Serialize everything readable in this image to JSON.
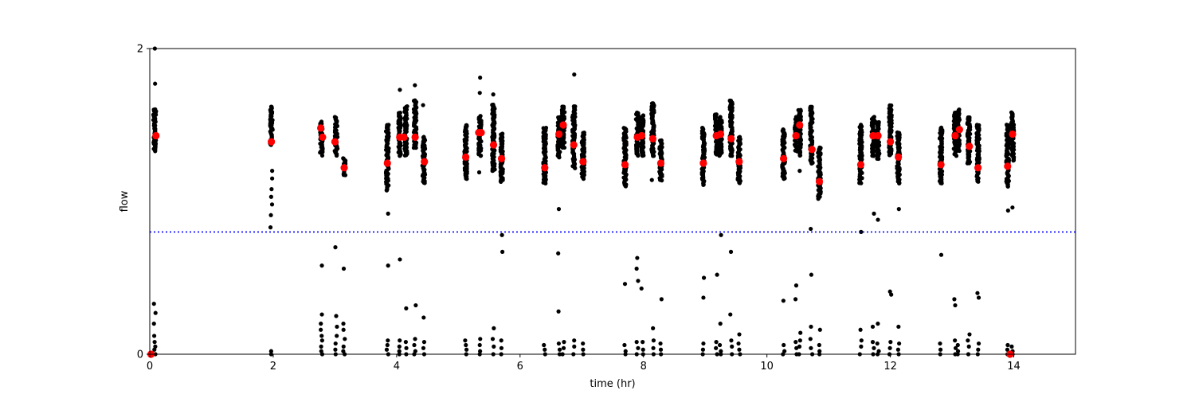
{
  "chart_data": {
    "type": "scatter",
    "title": "",
    "xlabel": "time (hr)",
    "ylabel": "flow",
    "xlim": [
      0,
      15
    ],
    "ylim": [
      0,
      2
    ],
    "x_ticks": [
      0,
      2,
      4,
      6,
      8,
      10,
      12,
      14
    ],
    "x_tick_labels": [
      "0",
      "2",
      "4",
      "6",
      "8",
      "10",
      "12",
      "14"
    ],
    "y_ticks": [
      0,
      2
    ],
    "y_tick_labels": [
      "0",
      "2"
    ],
    "grid": false,
    "legend": "none",
    "threshold_line": {
      "y": 0.8,
      "color": "#0000ff",
      "style": "dotted"
    },
    "colors": {
      "samples": "#000000",
      "means": "#ff0000",
      "threshold": "#0000ff",
      "axes": "#000000"
    },
    "series": [
      {
        "role": "samples",
        "clusters": [
          {
            "x": 0.08,
            "top": 1.6,
            "bottom": 1.33,
            "outliers": [
              2.0,
              1.77,
              0.33,
              0.27,
              0.2,
              0.12,
              0.08,
              0.05,
              0.03,
              0.0
            ]
          },
          {
            "x": 1.97,
            "top": 1.62,
            "bottom": 1.37,
            "outliers": [
              1.2,
              1.15,
              1.08,
              1.03,
              0.98,
              0.91,
              0.83,
              0.02,
              0.0
            ]
          },
          {
            "x": 2.78,
            "top": 1.52,
            "bottom": 1.32,
            "outliers": [
              1.3,
              0.58,
              0.26,
              0.2,
              0.16,
              0.12,
              0.09,
              0.05,
              0.02,
              0.0
            ]
          },
          {
            "x": 3.02,
            "top": 1.55,
            "bottom": 1.3,
            "outliers": [
              0.7,
              0.25,
              0.18,
              0.12,
              0.07,
              0.03,
              0.0
            ]
          },
          {
            "x": 3.15,
            "top": 1.28,
            "bottom": 1.17,
            "outliers": [
              0.56,
              0.2,
              0.16,
              0.1,
              0.05,
              0.02,
              0.0
            ]
          },
          {
            "x": 3.85,
            "top": 1.5,
            "bottom": 1.07,
            "outliers": [
              0.92,
              0.58,
              0.09,
              0.06,
              0.03,
              0.0
            ]
          },
          {
            "x": 4.05,
            "top": 1.58,
            "bottom": 1.3,
            "outliers": [
              1.73,
              0.62,
              0.09,
              0.05,
              0.02,
              0.0
            ]
          },
          {
            "x": 4.15,
            "top": 1.62,
            "bottom": 1.3,
            "outliers": [
              0.3,
              0.08,
              0.04,
              0.0
            ]
          },
          {
            "x": 4.3,
            "top": 1.66,
            "bottom": 1.35,
            "outliers": [
              1.76,
              0.32,
              0.1,
              0.06,
              0.02,
              0.0
            ]
          },
          {
            "x": 4.44,
            "top": 1.42,
            "bottom": 1.12,
            "outliers": [
              1.63,
              0.24,
              0.08,
              0.04,
              0.0
            ]
          },
          {
            "x": 5.12,
            "top": 1.5,
            "bottom": 1.15,
            "outliers": [
              0.09,
              0.06,
              0.03,
              0.0
            ]
          },
          {
            "x": 5.35,
            "top": 1.56,
            "bottom": 1.3,
            "outliers": [
              1.81,
              1.71,
              1.19,
              0.1,
              0.06,
              0.02,
              0.0
            ]
          },
          {
            "x": 5.57,
            "top": 1.63,
            "bottom": 1.2,
            "outliers": [
              1.7,
              0.17,
              0.1,
              0.05,
              0.0
            ]
          },
          {
            "x": 5.7,
            "top": 1.44,
            "bottom": 1.13,
            "outliers": [
              0.78,
              0.67,
              0.09,
              0.04,
              0.0
            ]
          },
          {
            "x": 6.4,
            "top": 1.48,
            "bottom": 1.12,
            "outliers": [
              0.06,
              0.03,
              0.0
            ]
          },
          {
            "x": 6.63,
            "top": 1.55,
            "bottom": 1.29,
            "outliers": [
              0.95,
              0.66,
              0.28,
              0.07,
              0.03,
              0.0
            ]
          },
          {
            "x": 6.7,
            "top": 1.62,
            "bottom": 1.35,
            "outliers": [
              0.08,
              0.04,
              0.0
            ]
          },
          {
            "x": 6.87,
            "top": 1.62,
            "bottom": 1.22,
            "outliers": [
              1.83,
              0.09,
              0.05,
              0.0
            ]
          },
          {
            "x": 7.02,
            "top": 1.45,
            "bottom": 1.15,
            "outliers": [
              0.07,
              0.03,
              0.0
            ]
          },
          {
            "x": 7.7,
            "top": 1.48,
            "bottom": 1.1,
            "outliers": [
              0.46,
              0.06,
              0.02,
              0.0
            ]
          },
          {
            "x": 7.9,
            "top": 1.58,
            "bottom": 1.3,
            "outliers": [
              0.63,
              0.56,
              0.48,
              0.08,
              0.04,
              0.0
            ]
          },
          {
            "x": 7.98,
            "top": 1.56,
            "bottom": 1.3,
            "outliers": [
              0.43,
              0.08,
              0.03,
              0.0
            ]
          },
          {
            "x": 8.15,
            "top": 1.64,
            "bottom": 1.3,
            "outliers": [
              1.14,
              0.17,
              0.09,
              0.04,
              0.0
            ]
          },
          {
            "x": 8.28,
            "top": 1.4,
            "bottom": 1.14,
            "outliers": [
              0.36,
              0.07,
              0.03,
              0.0
            ]
          },
          {
            "x": 8.97,
            "top": 1.48,
            "bottom": 1.11,
            "outliers": [
              0.5,
              0.37,
              0.07,
              0.03,
              0.0
            ]
          },
          {
            "x": 9.18,
            "top": 1.57,
            "bottom": 1.31,
            "outliers": [
              0.52,
              0.08,
              0.04,
              0.0
            ]
          },
          {
            "x": 9.25,
            "top": 1.55,
            "bottom": 1.3,
            "outliers": [
              0.78,
              0.2,
              0.06,
              0.02,
              0.0
            ]
          },
          {
            "x": 9.42,
            "top": 1.66,
            "bottom": 1.3,
            "outliers": [
              0.67,
              0.26,
              0.09,
              0.05,
              0.0
            ]
          },
          {
            "x": 9.55,
            "top": 1.42,
            "bottom": 1.12,
            "outliers": [
              0.13,
              0.07,
              0.03,
              0.0
            ]
          },
          {
            "x": 10.27,
            "top": 1.47,
            "bottom": 1.15,
            "outliers": [
              0.35,
              0.06,
              0.02,
              0.0
            ]
          },
          {
            "x": 10.47,
            "top": 1.55,
            "bottom": 1.33,
            "outliers": [
              0.45,
              0.36,
              0.08,
              0.04,
              0.0
            ]
          },
          {
            "x": 10.53,
            "top": 1.6,
            "bottom": 1.3,
            "outliers": [
              1.2,
              0.14,
              0.09,
              0.05,
              0.0
            ]
          },
          {
            "x": 10.72,
            "top": 1.62,
            "bottom": 1.25,
            "outliers": [
              0.82,
              0.52,
              0.18,
              0.1,
              0.04,
              0.0
            ]
          },
          {
            "x": 10.85,
            "top": 1.35,
            "bottom": 1.02,
            "outliers": [
              0.16,
              0.06,
              0.02,
              0.0
            ]
          },
          {
            "x": 11.52,
            "top": 1.5,
            "bottom": 1.12,
            "outliers": [
              0.8,
              0.16,
              0.09,
              0.05,
              0.0
            ]
          },
          {
            "x": 11.72,
            "top": 1.55,
            "bottom": 1.3,
            "outliers": [
              0.92,
              0.18,
              0.08,
              0.04,
              0.0
            ]
          },
          {
            "x": 11.8,
            "top": 1.52,
            "bottom": 1.28,
            "outliers": [
              0.88,
              0.2,
              0.07,
              0.02,
              0.0
            ]
          },
          {
            "x": 12.0,
            "top": 1.63,
            "bottom": 1.3,
            "outliers": [
              0.41,
              0.39,
              0.08,
              0.04,
              0.0
            ]
          },
          {
            "x": 12.13,
            "top": 1.45,
            "bottom": 1.12,
            "outliers": [
              0.95,
              0.18,
              0.07,
              0.03,
              0.0
            ]
          },
          {
            "x": 12.82,
            "top": 1.48,
            "bottom": 1.12,
            "outliers": [
              0.65,
              0.07,
              0.03,
              0.0
            ]
          },
          {
            "x": 13.05,
            "top": 1.58,
            "bottom": 1.3,
            "outliers": [
              0.36,
              0.32,
              0.09,
              0.04,
              0.0
            ]
          },
          {
            "x": 13.1,
            "top": 1.6,
            "bottom": 1.33,
            "outliers": [
              0.06,
              0.02,
              0.0
            ]
          },
          {
            "x": 13.27,
            "top": 1.55,
            "bottom": 1.25,
            "outliers": [
              0.13,
              0.09,
              0.05,
              0.0
            ]
          },
          {
            "x": 13.42,
            "top": 1.5,
            "bottom": 1.13,
            "outliers": [
              0.4,
              0.37,
              0.07,
              0.03,
              0.0
            ]
          },
          {
            "x": 13.9,
            "top": 1.5,
            "bottom": 1.1,
            "outliers": [
              0.94,
              0.06,
              0.03,
              0.0
            ]
          },
          {
            "x": 13.98,
            "top": 1.58,
            "bottom": 1.27,
            "outliers": [
              1.56,
              0.96,
              0.05,
              0.02,
              0.0
            ]
          }
        ]
      },
      {
        "role": "means",
        "points": [
          [
            0.1,
            1.43
          ],
          [
            1.97,
            1.39
          ],
          [
            2.77,
            1.48
          ],
          [
            2.8,
            1.42
          ],
          [
            3.0,
            1.39
          ],
          [
            3.15,
            1.22
          ],
          [
            3.85,
            1.25
          ],
          [
            4.05,
            1.42
          ],
          [
            4.12,
            1.42
          ],
          [
            4.3,
            1.42
          ],
          [
            4.45,
            1.26
          ],
          [
            5.12,
            1.29
          ],
          [
            5.33,
            1.45
          ],
          [
            5.37,
            1.45
          ],
          [
            5.57,
            1.37
          ],
          [
            5.7,
            1.28
          ],
          [
            6.4,
            1.22
          ],
          [
            6.63,
            1.44
          ],
          [
            6.7,
            1.5
          ],
          [
            6.87,
            1.37
          ],
          [
            7.02,
            1.26
          ],
          [
            7.7,
            1.24
          ],
          [
            7.9,
            1.42
          ],
          [
            7.97,
            1.43
          ],
          [
            8.15,
            1.41
          ],
          [
            8.28,
            1.25
          ],
          [
            8.97,
            1.25
          ],
          [
            9.18,
            1.43
          ],
          [
            9.25,
            1.44
          ],
          [
            9.42,
            1.41
          ],
          [
            9.55,
            1.26
          ],
          [
            10.27,
            1.28
          ],
          [
            10.47,
            1.43
          ],
          [
            10.53,
            1.5
          ],
          [
            10.73,
            1.34
          ],
          [
            10.85,
            1.13
          ],
          [
            11.52,
            1.24
          ],
          [
            11.72,
            1.43
          ],
          [
            11.8,
            1.43
          ],
          [
            12.0,
            1.39
          ],
          [
            12.13,
            1.29
          ],
          [
            12.82,
            1.24
          ],
          [
            13.05,
            1.43
          ],
          [
            13.12,
            1.47
          ],
          [
            13.28,
            1.36
          ],
          [
            13.42,
            1.22
          ],
          [
            13.9,
            1.23
          ],
          [
            13.98,
            1.44
          ],
          [
            13.94,
            0.0
          ],
          [
            0.02,
            0.0
          ]
        ]
      }
    ]
  }
}
